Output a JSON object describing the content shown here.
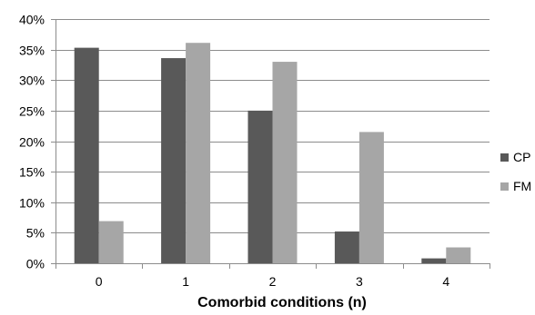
{
  "chart_data": {
    "type": "bar",
    "title": "",
    "xlabel": "Comorbid conditions (n)",
    "ylabel": "",
    "categories": [
      "0",
      "1",
      "2",
      "3",
      "4"
    ],
    "series": [
      {
        "name": "CP",
        "color": "#595959",
        "values": [
          35.3,
          33.6,
          25.0,
          5.2,
          0.8
        ]
      },
      {
        "name": "FM",
        "color": "#a6a6a6",
        "values": [
          6.9,
          36.1,
          33.0,
          21.5,
          2.6
        ]
      }
    ],
    "ylim": [
      0,
      40
    ],
    "yticks": [
      "0%",
      "5%",
      "10%",
      "15%",
      "20%",
      "25%",
      "30%",
      "35%",
      "40%"
    ],
    "grid": true,
    "legend": "right"
  }
}
